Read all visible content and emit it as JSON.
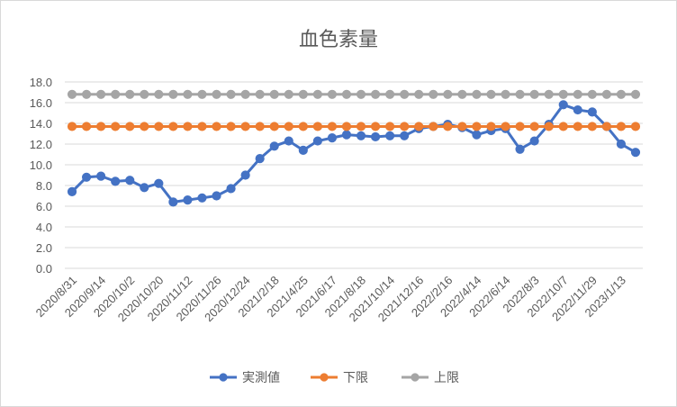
{
  "chart_data": {
    "type": "line",
    "title": "血色素量",
    "ylim": [
      0,
      18
    ],
    "y_tick_step": 2,
    "y_tick_labels": [
      "0.0",
      "2.0",
      "4.0",
      "6.0",
      "8.0",
      "10.0",
      "12.0",
      "14.0",
      "16.0",
      "18.0"
    ],
    "grid": "horizontal",
    "legend_position": "bottom",
    "x_tick_labels": [
      "2020/8/31",
      "2020/9/14",
      "2020/10/2",
      "2020/10/20",
      "2020/11/12",
      "2020/11/26",
      "2020/12/24",
      "2021/2/18",
      "2021/4/25",
      "2021/6/17",
      "2021/8/18",
      "2021/10/14",
      "2021/12/16",
      "2022/2/16",
      "2022/4/14",
      "2022/6/14",
      "2022/8/3",
      "2022/10/7",
      "2022/11/29",
      "2023/1/13"
    ],
    "x_tick_every": 2,
    "series": [
      {
        "name": "実測値",
        "color": "#4472C4",
        "values": [
          7.4,
          8.8,
          8.9,
          8.4,
          8.5,
          7.8,
          8.2,
          6.4,
          6.6,
          6.8,
          7.0,
          7.7,
          9.0,
          10.6,
          11.8,
          12.3,
          11.4,
          12.3,
          12.6,
          12.9,
          12.8,
          12.7,
          12.8,
          12.8,
          13.5,
          13.7,
          13.9,
          13.6,
          12.9,
          13.3,
          13.5,
          11.5,
          12.3,
          13.9,
          15.8,
          15.3,
          15.1,
          13.7,
          12.0,
          11.2
        ]
      },
      {
        "name": "下限",
        "color": "#ED7D31",
        "values": [
          13.7,
          13.7,
          13.7,
          13.7,
          13.7,
          13.7,
          13.7,
          13.7,
          13.7,
          13.7,
          13.7,
          13.7,
          13.7,
          13.7,
          13.7,
          13.7,
          13.7,
          13.7,
          13.7,
          13.7,
          13.7,
          13.7,
          13.7,
          13.7,
          13.7,
          13.7,
          13.7,
          13.7,
          13.7,
          13.7,
          13.7,
          13.7,
          13.7,
          13.7,
          13.7,
          13.7,
          13.7,
          13.7,
          13.7,
          13.7
        ]
      },
      {
        "name": "上限",
        "color": "#A5A5A5",
        "values": [
          16.8,
          16.8,
          16.8,
          16.8,
          16.8,
          16.8,
          16.8,
          16.8,
          16.8,
          16.8,
          16.8,
          16.8,
          16.8,
          16.8,
          16.8,
          16.8,
          16.8,
          16.8,
          16.8,
          16.8,
          16.8,
          16.8,
          16.8,
          16.8,
          16.8,
          16.8,
          16.8,
          16.8,
          16.8,
          16.8,
          16.8,
          16.8,
          16.8,
          16.8,
          16.8,
          16.8,
          16.8,
          16.8,
          16.8,
          16.8
        ]
      }
    ]
  }
}
